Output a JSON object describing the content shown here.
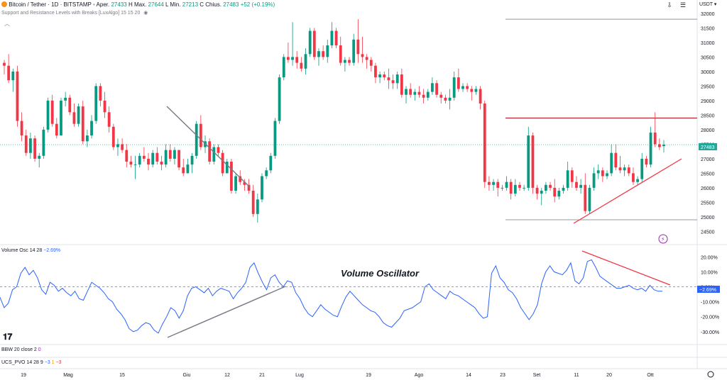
{
  "header": {
    "symbol": "Bitcoin / Tether · 1D · BITSTAMP",
    "open_label": "Aper.",
    "open": "27433",
    "high_label": "H",
    "high_sep": "Max.",
    "high": "27644",
    "low_label": "L",
    "low_sep": "Min.",
    "low": "27213",
    "close_label": "C",
    "close_sep": "Chius.",
    "close": "27483",
    "change": "+52 (+0.19%)",
    "indicator": "Support and Resistance Levels with Breaks [LuxAlgo] 15 15 20",
    "currency": "USDT"
  },
  "price_axis": {
    "ticks": [
      "32000",
      "31500",
      "31000",
      "30500",
      "30000",
      "29500",
      "29000",
      "28500",
      "28000",
      "27500",
      "27000",
      "26500",
      "26000",
      "25500",
      "25000",
      "24500"
    ],
    "last_price_tag": "27483"
  },
  "volume_osc": {
    "label": "Volume Osc",
    "params": "14 28",
    "value": "−2.69%",
    "ticks": [
      "20.00%",
      "10.00%",
      "0.00%",
      "-10.00%",
      "-20.00%",
      "-30.00%"
    ],
    "current_tag": "−2.69%",
    "annotation": "Volume Oscillator"
  },
  "bbw": {
    "label": "BBW",
    "params": "20 close 2",
    "value": "0"
  },
  "ucs": {
    "label": "UCS_PVO",
    "params": "14 28 9",
    "v1": "−3",
    "v2": "1",
    "v3": "−3"
  },
  "time_axis": [
    "19",
    "Mag",
    "15",
    "Giu",
    "12",
    "21",
    "Lug",
    "19",
    "Ago",
    "14",
    "23",
    "Set",
    "11",
    "20",
    "Ott"
  ],
  "colors": {
    "up": "#089981",
    "down": "#f23645",
    "osc_line": "#2962ff",
    "resistance": "#b22833",
    "trend_red": "#f23645",
    "trend_gray": "#787b86"
  },
  "chart_data": [
    {
      "type": "candlestick",
      "title": "Bitcoin / Tether · 1D · BITSTAMP",
      "ylim": [
        24500,
        32000
      ],
      "x_tick_labels": [
        "19",
        "Mag",
        "15",
        "Giu",
        "12",
        "21",
        "Lug",
        "19",
        "Ago",
        "14",
        "23",
        "Set",
        "11",
        "20",
        "Ott"
      ],
      "candles": [
        [
          30300,
          30400,
          29900,
          30200
        ],
        [
          30200,
          30600,
          29600,
          29700
        ],
        [
          29700,
          30100,
          29300,
          30000
        ],
        [
          30000,
          30200,
          28100,
          28300
        ],
        [
          28300,
          28600,
          27600,
          27800
        ],
        [
          27800,
          28000,
          27100,
          27200
        ],
        [
          27200,
          27900,
          27000,
          27700
        ],
        [
          27700,
          27800,
          26900,
          27000
        ],
        [
          27000,
          27200,
          26700,
          27100
        ],
        [
          27100,
          28100,
          27000,
          28000
        ],
        [
          28000,
          29100,
          27900,
          29000
        ],
        [
          29000,
          29200,
          28100,
          28200
        ],
        [
          28200,
          28400,
          27700,
          27800
        ],
        [
          27800,
          29100,
          27800,
          29000
        ],
        [
          29000,
          29300,
          28800,
          29100
        ],
        [
          29100,
          29200,
          28500,
          28600
        ],
        [
          28600,
          28900,
          28100,
          28200
        ],
        [
          28200,
          28900,
          28100,
          28800
        ],
        [
          28800,
          29000,
          27500,
          27600
        ],
        [
          27600,
          28000,
          27400,
          27800
        ],
        [
          27800,
          28500,
          27700,
          28300
        ],
        [
          28300,
          29600,
          28200,
          29500
        ],
        [
          29500,
          29600,
          28800,
          29000
        ],
        [
          29000,
          29300,
          28400,
          28600
        ],
        [
          28600,
          28800,
          27900,
          28100
        ],
        [
          28100,
          28200,
          27300,
          27400
        ],
        [
          27400,
          27700,
          27100,
          27500
        ],
        [
          27500,
          27700,
          27200,
          27300
        ],
        [
          27300,
          27500,
          26700,
          26900
        ],
        [
          26900,
          27100,
          26700,
          26800
        ],
        [
          26800,
          27100,
          26300,
          26800
        ],
        [
          26800,
          27200,
          26700,
          27100
        ],
        [
          27100,
          27400,
          26900,
          27000
        ],
        [
          27000,
          27200,
          26600,
          26800
        ],
        [
          26800,
          27300,
          26700,
          27200
        ],
        [
          27200,
          27400,
          26800,
          26900
        ],
        [
          26900,
          27100,
          26600,
          26800
        ],
        [
          26800,
          27500,
          26700,
          27300
        ],
        [
          27300,
          27500,
          26900,
          27000
        ],
        [
          27000,
          27400,
          26800,
          27300
        ],
        [
          27300,
          27300,
          26600,
          26700
        ],
        [
          26700,
          27000,
          26400,
          26500
        ],
        [
          26500,
          27000,
          26500,
          26800
        ],
        [
          26800,
          27200,
          26500,
          27100
        ],
        [
          27100,
          28300,
          27000,
          28200
        ],
        [
          28200,
          28500,
          27300,
          27400
        ],
        [
          27400,
          27800,
          27200,
          27600
        ],
        [
          27600,
          27700,
          26800,
          26900
        ],
        [
          26900,
          27500,
          26800,
          27400
        ],
        [
          27400,
          27500,
          27100,
          27200
        ],
        [
          27200,
          27300,
          26400,
          26500
        ],
        [
          26500,
          27000,
          26500,
          26900
        ],
        [
          26900,
          27000,
          25800,
          25900
        ],
        [
          25900,
          26500,
          25800,
          26400
        ],
        [
          26400,
          26600,
          26100,
          26200
        ],
        [
          26200,
          26300,
          25900,
          26100
        ],
        [
          26100,
          26300,
          25800,
          25900
        ],
        [
          25900,
          26100,
          25000,
          25100
        ],
        [
          25100,
          25800,
          24800,
          25600
        ],
        [
          25600,
          26500,
          25500,
          26400
        ],
        [
          26400,
          26700,
          26300,
          26600
        ],
        [
          26600,
          27200,
          26500,
          27100
        ],
        [
          27100,
          28400,
          27000,
          28300
        ],
        [
          28300,
          29900,
          28200,
          29800
        ],
        [
          29800,
          30600,
          29700,
          30500
        ],
        [
          30500,
          31000,
          30300,
          30400
        ],
        [
          30400,
          31700,
          30200,
          30500
        ],
        [
          30500,
          30700,
          30100,
          30300
        ],
        [
          30300,
          30500,
          30000,
          30100
        ],
        [
          30100,
          30800,
          29900,
          30600
        ],
        [
          30600,
          31500,
          30500,
          31400
        ],
        [
          31400,
          31500,
          30400,
          30500
        ],
        [
          30500,
          30800,
          30200,
          30700
        ],
        [
          30700,
          30900,
          30400,
          30500
        ],
        [
          30500,
          31100,
          30300,
          30900
        ],
        [
          30900,
          31700,
          30800,
          31400
        ],
        [
          31400,
          31500,
          30800,
          30900
        ],
        [
          30900,
          31200,
          30200,
          30300
        ],
        [
          30300,
          30500,
          30000,
          30400
        ],
        [
          30400,
          30500,
          30200,
          30300
        ],
        [
          30300,
          31300,
          30200,
          31100
        ],
        [
          31100,
          31800,
          30300,
          30600
        ],
        [
          30600,
          31200,
          30300,
          30500
        ],
        [
          30500,
          30600,
          30100,
          30400
        ],
        [
          30400,
          30500,
          30000,
          30200
        ],
        [
          30200,
          30300,
          29600,
          29800
        ],
        [
          29800,
          30000,
          29600,
          29900
        ],
        [
          29900,
          30000,
          29700,
          29800
        ],
        [
          29800,
          30100,
          29400,
          29700
        ],
        [
          29700,
          29900,
          29400,
          29600
        ],
        [
          29600,
          30000,
          29400,
          29900
        ],
        [
          29900,
          30100,
          29100,
          29200
        ],
        [
          29200,
          29500,
          28900,
          29400
        ],
        [
          29400,
          29600,
          29100,
          29200
        ],
        [
          29200,
          29400,
          29000,
          29300
        ],
        [
          29300,
          29500,
          29100,
          29200
        ],
        [
          29200,
          29400,
          28900,
          29100
        ],
        [
          29100,
          29400,
          29000,
          29300
        ],
        [
          29300,
          29800,
          29200,
          29600
        ],
        [
          29600,
          29700,
          29100,
          29200
        ],
        [
          29200,
          29300,
          28900,
          29100
        ],
        [
          29100,
          29200,
          28900,
          29000
        ],
        [
          29000,
          29400,
          28700,
          29100
        ],
        [
          29100,
          30000,
          29000,
          29800
        ],
        [
          29800,
          30100,
          29300,
          29400
        ],
        [
          29400,
          29600,
          29300,
          29500
        ],
        [
          29500,
          29600,
          29300,
          29400
        ],
        [
          29400,
          29500,
          29000,
          29300
        ],
        [
          29300,
          29500,
          29200,
          29400
        ],
        [
          29400,
          29500,
          28700,
          28900
        ],
        [
          28900,
          29000,
          26000,
          26200
        ],
        [
          26200,
          26400,
          25900,
          26100
        ],
        [
          26100,
          26300,
          25900,
          26200
        ],
        [
          26200,
          26300,
          25700,
          26000
        ],
        [
          26000,
          26100,
          25900,
          26000
        ],
        [
          26000,
          26400,
          25900,
          26200
        ],
        [
          26200,
          26300,
          25600,
          25800
        ],
        [
          25800,
          26300,
          25700,
          26100
        ],
        [
          26100,
          26200,
          25900,
          26000
        ],
        [
          26000,
          26100,
          25900,
          26000
        ],
        [
          26000,
          28100,
          25900,
          27800
        ],
        [
          27800,
          27900,
          25800,
          26000
        ],
        [
          26000,
          26100,
          25600,
          25800
        ],
        [
          25800,
          26000,
          25400,
          25900
        ],
        [
          25900,
          26200,
          25800,
          26100
        ],
        [
          26100,
          26200,
          25900,
          26000
        ],
        [
          26000,
          26300,
          25500,
          25700
        ],
        [
          25700,
          26000,
          25600,
          25900
        ],
        [
          25900,
          26100,
          25800,
          26000
        ],
        [
          26000,
          26900,
          25900,
          26600
        ],
        [
          26600,
          26700,
          26000,
          26200
        ],
        [
          26200,
          26400,
          25900,
          26000
        ],
        [
          26000,
          26300,
          25800,
          26100
        ],
        [
          26100,
          26500,
          25100,
          25200
        ],
        [
          25200,
          26100,
          25100,
          26000
        ],
        [
          26000,
          26700,
          25900,
          26500
        ],
        [
          26500,
          26800,
          26300,
          26600
        ],
        [
          26600,
          26700,
          26200,
          26400
        ],
        [
          26400,
          26600,
          26300,
          26500
        ],
        [
          26500,
          27500,
          26400,
          27200
        ],
        [
          27200,
          27500,
          26600,
          26700
        ],
        [
          26700,
          27100,
          26500,
          26600
        ],
        [
          26600,
          26800,
          26400,
          26700
        ],
        [
          26700,
          26800,
          26400,
          26500
        ],
        [
          26500,
          26700,
          26100,
          26200
        ],
        [
          26200,
          26400,
          26100,
          26300
        ],
        [
          26300,
          27200,
          26200,
          27000
        ],
        [
          27000,
          27100,
          26700,
          26800
        ],
        [
          26800,
          28100,
          26700,
          27900
        ],
        [
          27900,
          28600,
          27400,
          27500
        ],
        [
          27500,
          27700,
          27300,
          27400
        ],
        [
          27433,
          27644,
          27213,
          27483
        ]
      ]
    },
    {
      "type": "line",
      "title": "Volume Osc 14 28",
      "ylim": [
        -32,
        23
      ],
      "series": [
        {
          "name": "Volume Osc",
          "values": [
            -7,
            -14,
            -11,
            -2,
            0,
            9,
            13,
            8,
            11,
            6,
            -2,
            -5,
            3,
            1,
            -3,
            -1,
            -4,
            -6,
            -3,
            -8,
            -9,
            -3,
            3,
            1,
            -1,
            -4,
            -8,
            -10,
            -15,
            -18,
            -22,
            -28,
            -30,
            -29,
            -26,
            -24,
            -25,
            -29,
            -31,
            -25,
            -20,
            -14,
            -16,
            -21,
            -16,
            -6,
            -1,
            0,
            -2,
            -4,
            -1,
            -6,
            -3,
            -1,
            -2,
            -3,
            -8,
            -4,
            -1,
            3,
            13,
            16,
            9,
            3,
            -2,
            6,
            8,
            3,
            0,
            4,
            3,
            -4,
            -8,
            -14,
            -18,
            -20,
            -16,
            -12,
            -15,
            -17,
            -19,
            -20,
            -13,
            -7,
            -3,
            -6,
            -9,
            -12,
            -14,
            -16,
            -17,
            -20,
            -24,
            -26,
            -27,
            -24,
            -21,
            -16,
            -15,
            -14,
            -12,
            -10,
            0,
            2,
            -2,
            -4,
            -6,
            -8,
            -3,
            -5,
            -6,
            -8,
            -10,
            -12,
            -14,
            -18,
            -21,
            -20,
            9,
            14,
            6,
            3,
            -2,
            -4,
            -8,
            -14,
            -18,
            -22,
            -18,
            -12,
            2,
            10,
            14,
            10,
            9,
            8,
            11,
            16,
            4,
            2,
            6,
            17,
            18,
            13,
            7,
            5,
            3,
            1,
            -1,
            -1,
            0,
            1,
            -1,
            -2,
            -1,
            -3,
            1,
            -2,
            -3,
            -3
          ]
        }
      ]
    }
  ]
}
